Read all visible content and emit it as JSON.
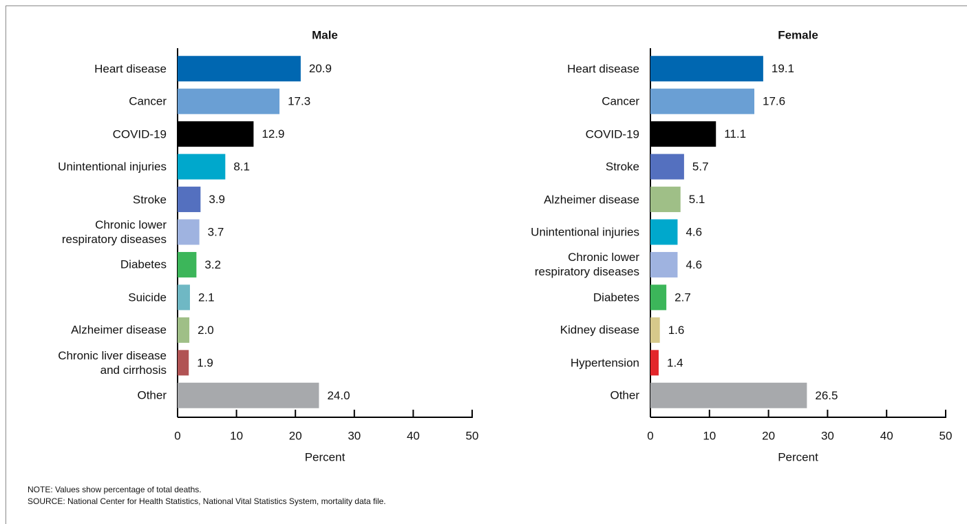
{
  "chart_data": [
    {
      "type": "bar",
      "orientation": "horizontal",
      "title": "Male",
      "categories": [
        "Heart disease",
        "Cancer",
        "COVID-19",
        "Unintentional injuries",
        "Stroke",
        "Chronic lower\nrespiratory diseases",
        "Diabetes",
        "Suicide",
        "Alzheimer disease",
        "Chronic liver disease\nand cirrhosis",
        "Other"
      ],
      "values": [
        20.9,
        17.3,
        12.9,
        8.1,
        3.9,
        3.7,
        3.2,
        2.1,
        2.0,
        1.9,
        24.0
      ],
      "value_labels": [
        "20.9",
        "17.3",
        "12.9",
        "8.1",
        "3.9",
        "3.7",
        "3.2",
        "2.1",
        "2.0",
        "1.9",
        "24.0"
      ],
      "colors": [
        "#0067b1",
        "#6a9fd4",
        "#000000",
        "#00a8cc",
        "#5470bf",
        "#9fb3e0",
        "#3cb65a",
        "#6fb8c4",
        "#9fbf87",
        "#b15354",
        "#a7a9ac"
      ],
      "xlim": [
        0,
        50
      ],
      "xticks": [
        0,
        10,
        20,
        30,
        40,
        50
      ],
      "xlabel": "Percent"
    },
    {
      "type": "bar",
      "orientation": "horizontal",
      "title": "Female",
      "categories": [
        "Heart disease",
        "Cancer",
        "COVID-19",
        "Stroke",
        "Alzheimer disease",
        "Unintentional injuries",
        "Chronic lower\nrespiratory diseases",
        "Diabetes",
        "Kidney disease",
        "Hypertension",
        "Other"
      ],
      "values": [
        19.1,
        17.6,
        11.1,
        5.7,
        5.1,
        4.6,
        4.6,
        2.7,
        1.6,
        1.4,
        26.5
      ],
      "value_labels": [
        "19.1",
        "17.6",
        "11.1",
        "5.7",
        "5.1",
        "4.6",
        "4.6",
        "2.7",
        "1.6",
        "1.4",
        "26.5"
      ],
      "colors": [
        "#0067b1",
        "#6a9fd4",
        "#000000",
        "#5470bf",
        "#9fbf87",
        "#00a8cc",
        "#9fb3e0",
        "#3cb65a",
        "#d6c98b",
        "#e3262b",
        "#a7a9ac"
      ],
      "xlim": [
        0,
        50
      ],
      "xticks": [
        0,
        10,
        20,
        30,
        40,
        50
      ],
      "xlabel": "Percent"
    }
  ],
  "notes": [
    "NOTE: Values show percentage of total deaths.",
    "SOURCE: National Center for Health Statistics, National Vital Statistics System, mortality data file."
  ]
}
